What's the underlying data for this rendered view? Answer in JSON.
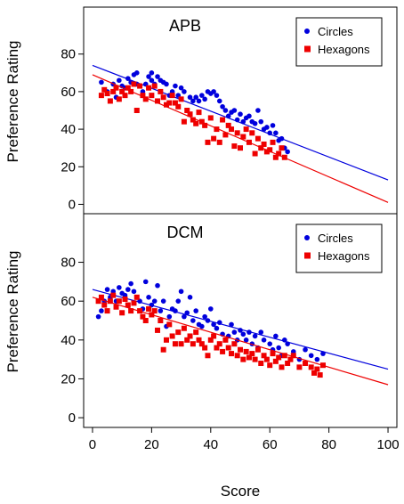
{
  "chart_data": [
    {
      "type": "scatter",
      "title": "APB",
      "xlabel": "Score",
      "ylabel": "Preference Rating",
      "xlim": [
        -3,
        103
      ],
      "ylim": [
        -5,
        105
      ],
      "xticks": [
        0,
        20,
        40,
        60,
        80,
        100
      ],
      "yticks": [
        0,
        20,
        40,
        60,
        80
      ],
      "legend_position": "top-right",
      "series": [
        {
          "name": "Circles",
          "color": "#0000dd",
          "marker": "circle",
          "trend": {
            "x": [
              0,
              100
            ],
            "y": [
              74,
              13
            ]
          },
          "points": [
            [
              3,
              65
            ],
            [
              5,
              60
            ],
            [
              7,
              64
            ],
            [
              8,
              57
            ],
            [
              9,
              66
            ],
            [
              10,
              63
            ],
            [
              11,
              62
            ],
            [
              12,
              67
            ],
            [
              13,
              65
            ],
            [
              14,
              69
            ],
            [
              15,
              70
            ],
            [
              15,
              64
            ],
            [
              16,
              63
            ],
            [
              17,
              60
            ],
            [
              18,
              64
            ],
            [
              19,
              68
            ],
            [
              20,
              70
            ],
            [
              20,
              66
            ],
            [
              21,
              64
            ],
            [
              22,
              68
            ],
            [
              23,
              66
            ],
            [
              24,
              65
            ],
            [
              25,
              64
            ],
            [
              26,
              58
            ],
            [
              27,
              60
            ],
            [
              28,
              63
            ],
            [
              29,
              58
            ],
            [
              30,
              62
            ],
            [
              31,
              60
            ],
            [
              33,
              57
            ],
            [
              34,
              55
            ],
            [
              35,
              57
            ],
            [
              36,
              55
            ],
            [
              37,
              58
            ],
            [
              38,
              56
            ],
            [
              39,
              60
            ],
            [
              40,
              59
            ],
            [
              41,
              60
            ],
            [
              42,
              58
            ],
            [
              43,
              55
            ],
            [
              44,
              52
            ],
            [
              45,
              50
            ],
            [
              46,
              47
            ],
            [
              47,
              49
            ],
            [
              48,
              50
            ],
            [
              49,
              45
            ],
            [
              50,
              48
            ],
            [
              51,
              44
            ],
            [
              52,
              46
            ],
            [
              53,
              47
            ],
            [
              54,
              44
            ],
            [
              55,
              43
            ],
            [
              56,
              50
            ],
            [
              57,
              44
            ],
            [
              58,
              40
            ],
            [
              59,
              41
            ],
            [
              60,
              38
            ],
            [
              61,
              42
            ],
            [
              62,
              38
            ],
            [
              63,
              34
            ],
            [
              64,
              35
            ],
            [
              65,
              30
            ],
            [
              66,
              28
            ]
          ]
        },
        {
          "name": "Hexagons",
          "color": "#ee0000",
          "marker": "square",
          "trend": {
            "x": [
              0,
              100
            ],
            "y": [
              69,
              1
            ]
          },
          "points": [
            [
              3,
              58
            ],
            [
              4,
              61
            ],
            [
              5,
              59
            ],
            [
              6,
              55
            ],
            [
              7,
              60
            ],
            [
              8,
              62
            ],
            [
              9,
              56
            ],
            [
              10,
              60
            ],
            [
              11,
              58
            ],
            [
              12,
              62
            ],
            [
              13,
              60
            ],
            [
              14,
              64
            ],
            [
              15,
              50
            ],
            [
              16,
              63
            ],
            [
              17,
              58
            ],
            [
              18,
              56
            ],
            [
              19,
              62
            ],
            [
              20,
              58
            ],
            [
              21,
              63
            ],
            [
              22,
              55
            ],
            [
              23,
              60
            ],
            [
              24,
              57
            ],
            [
              25,
              53
            ],
            [
              26,
              54
            ],
            [
              27,
              58
            ],
            [
              28,
              54
            ],
            [
              29,
              52
            ],
            [
              30,
              56
            ],
            [
              31,
              44
            ],
            [
              32,
              50
            ],
            [
              33,
              48
            ],
            [
              34,
              45
            ],
            [
              35,
              43
            ],
            [
              36,
              49
            ],
            [
              37,
              44
            ],
            [
              38,
              42
            ],
            [
              39,
              33
            ],
            [
              40,
              46
            ],
            [
              41,
              35
            ],
            [
              42,
              40
            ],
            [
              43,
              33
            ],
            [
              44,
              45
            ],
            [
              45,
              37
            ],
            [
              46,
              42
            ],
            [
              47,
              40
            ],
            [
              48,
              31
            ],
            [
              49,
              38
            ],
            [
              50,
              30
            ],
            [
              51,
              36
            ],
            [
              52,
              40
            ],
            [
              53,
              33
            ],
            [
              54,
              38
            ],
            [
              55,
              27
            ],
            [
              56,
              35
            ],
            [
              57,
              30
            ],
            [
              58,
              32
            ],
            [
              59,
              28
            ],
            [
              60,
              29
            ],
            [
              61,
              33
            ],
            [
              62,
              25
            ],
            [
              63,
              27
            ],
            [
              64,
              30
            ],
            [
              65,
              25
            ]
          ]
        }
      ]
    },
    {
      "type": "scatter",
      "title": "DCM",
      "xlabel": "Score",
      "ylabel": "Preference Rating",
      "xlim": [
        -3,
        103
      ],
      "ylim": [
        -5,
        105
      ],
      "xticks": [
        0,
        20,
        40,
        60,
        80,
        100
      ],
      "yticks": [
        0,
        20,
        40,
        60,
        80
      ],
      "legend_position": "top-right",
      "series": [
        {
          "name": "Circles",
          "color": "#0000dd",
          "marker": "circle",
          "trend": {
            "x": [
              0,
              100
            ],
            "y": [
              66,
              25
            ]
          },
          "points": [
            [
              2,
              52
            ],
            [
              3,
              55
            ],
            [
              4,
              60
            ],
            [
              5,
              66
            ],
            [
              6,
              62
            ],
            [
              7,
              65
            ],
            [
              8,
              60
            ],
            [
              9,
              67
            ],
            [
              10,
              64
            ],
            [
              11,
              63
            ],
            [
              12,
              66
            ],
            [
              13,
              69
            ],
            [
              14,
              65
            ],
            [
              15,
              62
            ],
            [
              16,
              60
            ],
            [
              17,
              56
            ],
            [
              18,
              70
            ],
            [
              19,
              62
            ],
            [
              20,
              58
            ],
            [
              21,
              60
            ],
            [
              22,
              68
            ],
            [
              23,
              55
            ],
            [
              24,
              60
            ],
            [
              25,
              47
            ],
            [
              26,
              52
            ],
            [
              27,
              56
            ],
            [
              28,
              55
            ],
            [
              29,
              60
            ],
            [
              30,
              65
            ],
            [
              31,
              52
            ],
            [
              32,
              54
            ],
            [
              33,
              62
            ],
            [
              34,
              50
            ],
            [
              35,
              55
            ],
            [
              36,
              48
            ],
            [
              37,
              47
            ],
            [
              38,
              52
            ],
            [
              39,
              50
            ],
            [
              40,
              56
            ],
            [
              41,
              48
            ],
            [
              42,
              46
            ],
            [
              43,
              49
            ],
            [
              44,
              43
            ],
            [
              45,
              40
            ],
            [
              46,
              42
            ],
            [
              47,
              48
            ],
            [
              48,
              44
            ],
            [
              49,
              40
            ],
            [
              50,
              45
            ],
            [
              51,
              43
            ],
            [
              52,
              40
            ],
            [
              53,
              44
            ],
            [
              54,
              38
            ],
            [
              55,
              42
            ],
            [
              56,
              36
            ],
            [
              57,
              44
            ],
            [
              58,
              40
            ],
            [
              59,
              30
            ],
            [
              60,
              38
            ],
            [
              61,
              35
            ],
            [
              62,
              42
            ],
            [
              63,
              36
            ],
            [
              64,
              32
            ],
            [
              65,
              40
            ],
            [
              66,
              38
            ],
            [
              68,
              34
            ],
            [
              70,
              30
            ],
            [
              72,
              35
            ],
            [
              74,
              32
            ],
            [
              76,
              30
            ],
            [
              78,
              33
            ]
          ]
        },
        {
          "name": "Hexagons",
          "color": "#ee0000",
          "marker": "square",
          "trend": {
            "x": [
              0,
              100
            ],
            "y": [
              62,
              17
            ]
          },
          "points": [
            [
              2,
              60
            ],
            [
              3,
              62
            ],
            [
              4,
              58
            ],
            [
              5,
              55
            ],
            [
              6,
              60
            ],
            [
              7,
              63
            ],
            [
              8,
              57
            ],
            [
              9,
              60
            ],
            [
              10,
              54
            ],
            [
              11,
              61
            ],
            [
              12,
              58
            ],
            [
              13,
              55
            ],
            [
              14,
              59
            ],
            [
              15,
              62
            ],
            [
              16,
              55
            ],
            [
              17,
              52
            ],
            [
              18,
              50
            ],
            [
              19,
              56
            ],
            [
              20,
              53
            ],
            [
              21,
              55
            ],
            [
              22,
              45
            ],
            [
              23,
              50
            ],
            [
              24,
              35
            ],
            [
              25,
              40
            ],
            [
              26,
              48
            ],
            [
              27,
              42
            ],
            [
              28,
              38
            ],
            [
              29,
              44
            ],
            [
              30,
              38
            ],
            [
              31,
              46
            ],
            [
              32,
              40
            ],
            [
              33,
              42
            ],
            [
              34,
              38
            ],
            [
              35,
              44
            ],
            [
              36,
              40
            ],
            [
              37,
              38
            ],
            [
              38,
              36
            ],
            [
              39,
              32
            ],
            [
              40,
              40
            ],
            [
              41,
              42
            ],
            [
              42,
              36
            ],
            [
              43,
              38
            ],
            [
              44,
              34
            ],
            [
              45,
              40
            ],
            [
              46,
              36
            ],
            [
              47,
              33
            ],
            [
              48,
              38
            ],
            [
              49,
              32
            ],
            [
              50,
              35
            ],
            [
              51,
              30
            ],
            [
              52,
              34
            ],
            [
              53,
              31
            ],
            [
              54,
              33
            ],
            [
              55,
              30
            ],
            [
              56,
              35
            ],
            [
              57,
              28
            ],
            [
              58,
              32
            ],
            [
              59,
              30
            ],
            [
              60,
              27
            ],
            [
              61,
              33
            ],
            [
              62,
              29
            ],
            [
              63,
              31
            ],
            [
              64,
              26
            ],
            [
              65,
              32
            ],
            [
              66,
              28
            ],
            [
              67,
              30
            ],
            [
              68,
              32
            ],
            [
              70,
              26
            ],
            [
              72,
              28
            ],
            [
              74,
              26
            ],
            [
              75,
              23
            ],
            [
              76,
              25
            ],
            [
              77,
              22
            ],
            [
              78,
              27
            ]
          ]
        }
      ]
    }
  ]
}
